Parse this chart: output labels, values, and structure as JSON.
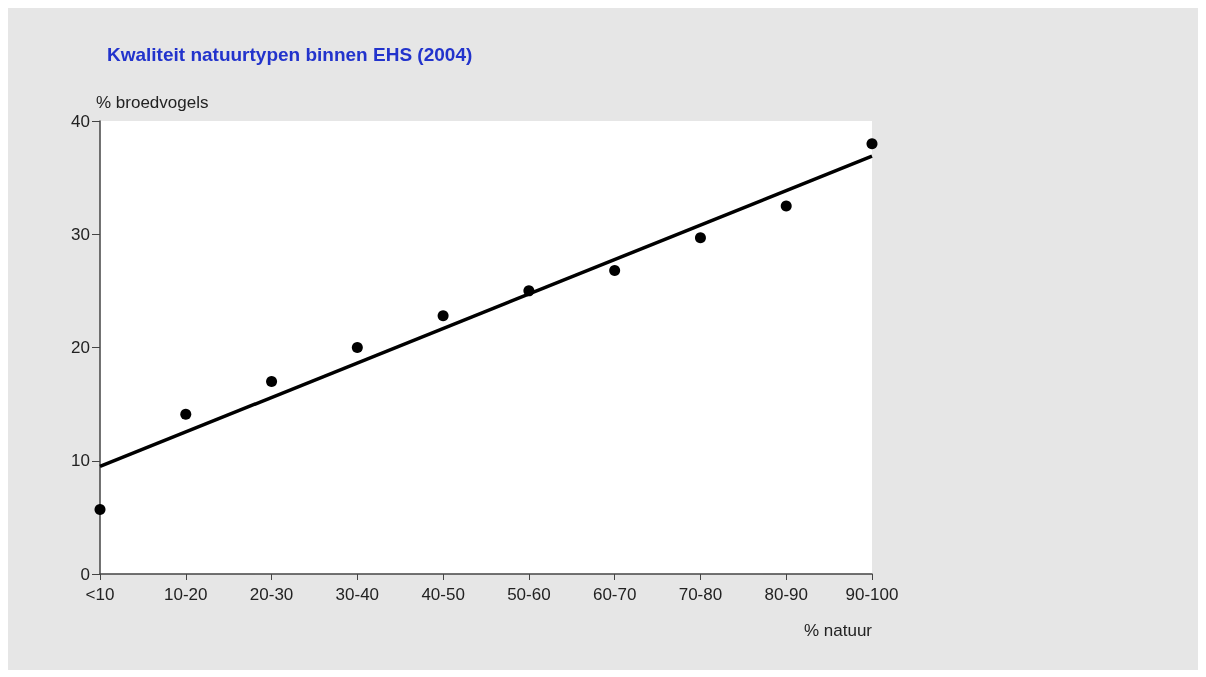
{
  "chart_data": {
    "type": "scatter",
    "title": "Kwaliteit natuurtypen binnen EHS (2004)",
    "ylabel": "% broedvogels",
    "xlabel": "% natuur",
    "categories": [
      "<10",
      "10-20",
      "20-30",
      "30-40",
      "40-50",
      "50-60",
      "60-70",
      "70-80",
      "80-90",
      "90-100"
    ],
    "series": [
      {
        "color": "#000000",
        "marker": "circle",
        "values": [
          5.7,
          14.1,
          17.0,
          20.0,
          22.8,
          25.0,
          26.8,
          29.7,
          32.5,
          38.0
        ]
      },
      {
        "type": "line",
        "color": "#000000",
        "marker": "none",
        "line_style": "solid",
        "x": [
          "<10",
          "90-100"
        ],
        "values": [
          9.5,
          36.9
        ]
      }
    ],
    "ylim": [
      0,
      40
    ],
    "yticks": [
      0,
      10,
      20,
      30,
      40
    ],
    "grid": false
  }
}
